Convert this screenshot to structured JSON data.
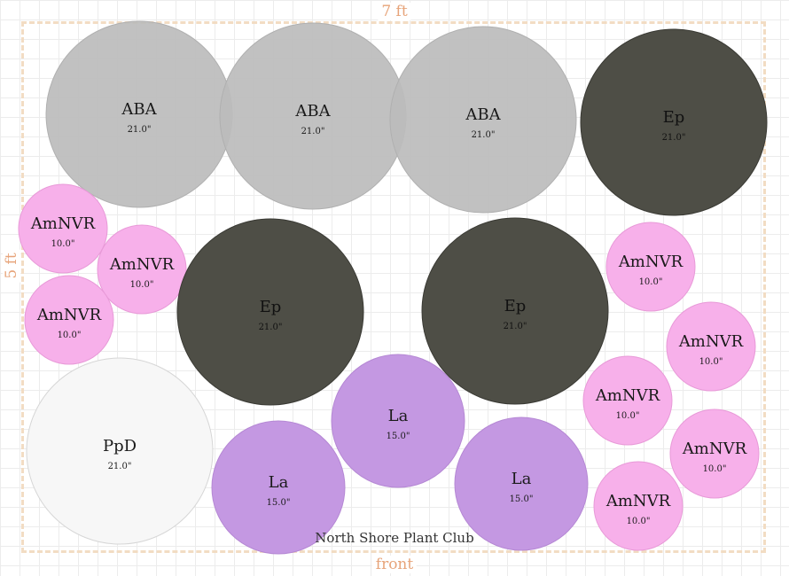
{
  "bed": {
    "width_label": "7 ft",
    "height_label": "5 ft",
    "front_label": "front",
    "club_name": "North Shore Plant Club"
  },
  "plants": [
    {
      "code": "ABA",
      "size": "21.0\"",
      "type": "ABA"
    },
    {
      "code": "ABA",
      "size": "21.0\"",
      "type": "ABA"
    },
    {
      "code": "ABA",
      "size": "21.0\"",
      "type": "ABA"
    },
    {
      "code": "Ep",
      "size": "21.0\"",
      "type": "Ep"
    },
    {
      "code": "AmNVR",
      "size": "10.0\"",
      "type": "AmNVR"
    },
    {
      "code": "AmNVR",
      "size": "10.0\"",
      "type": "AmNVR"
    },
    {
      "code": "AmNVR",
      "size": "10.0\"",
      "type": "AmNVR"
    },
    {
      "code": "Ep",
      "size": "21.0\"",
      "type": "Ep"
    },
    {
      "code": "Ep",
      "size": "21.0\"",
      "type": "Ep"
    },
    {
      "code": "AmNVR",
      "size": "10.0\"",
      "type": "AmNVR"
    },
    {
      "code": "AmNVR",
      "size": "10.0\"",
      "type": "AmNVR"
    },
    {
      "code": "AmNVR",
      "size": "10.0\"",
      "type": "AmNVR"
    },
    {
      "code": "AmNVR",
      "size": "10.0\"",
      "type": "AmNVR"
    },
    {
      "code": "AmNVR",
      "size": "10.0\"",
      "type": "AmNVR"
    },
    {
      "code": "PpD",
      "size": "21.0\"",
      "type": "PpD"
    },
    {
      "code": "La",
      "size": "15.0\"",
      "type": "La"
    },
    {
      "code": "La",
      "size": "15.0\"",
      "type": "La"
    },
    {
      "code": "La",
      "size": "15.0\"",
      "type": "La"
    }
  ],
  "colors": {
    "ABA": "#bcbcbc",
    "Ep": "#4a4a42",
    "AmNVR": "#f7b0ea",
    "PpD": "#f7f7f7",
    "La": "#c498e2"
  }
}
